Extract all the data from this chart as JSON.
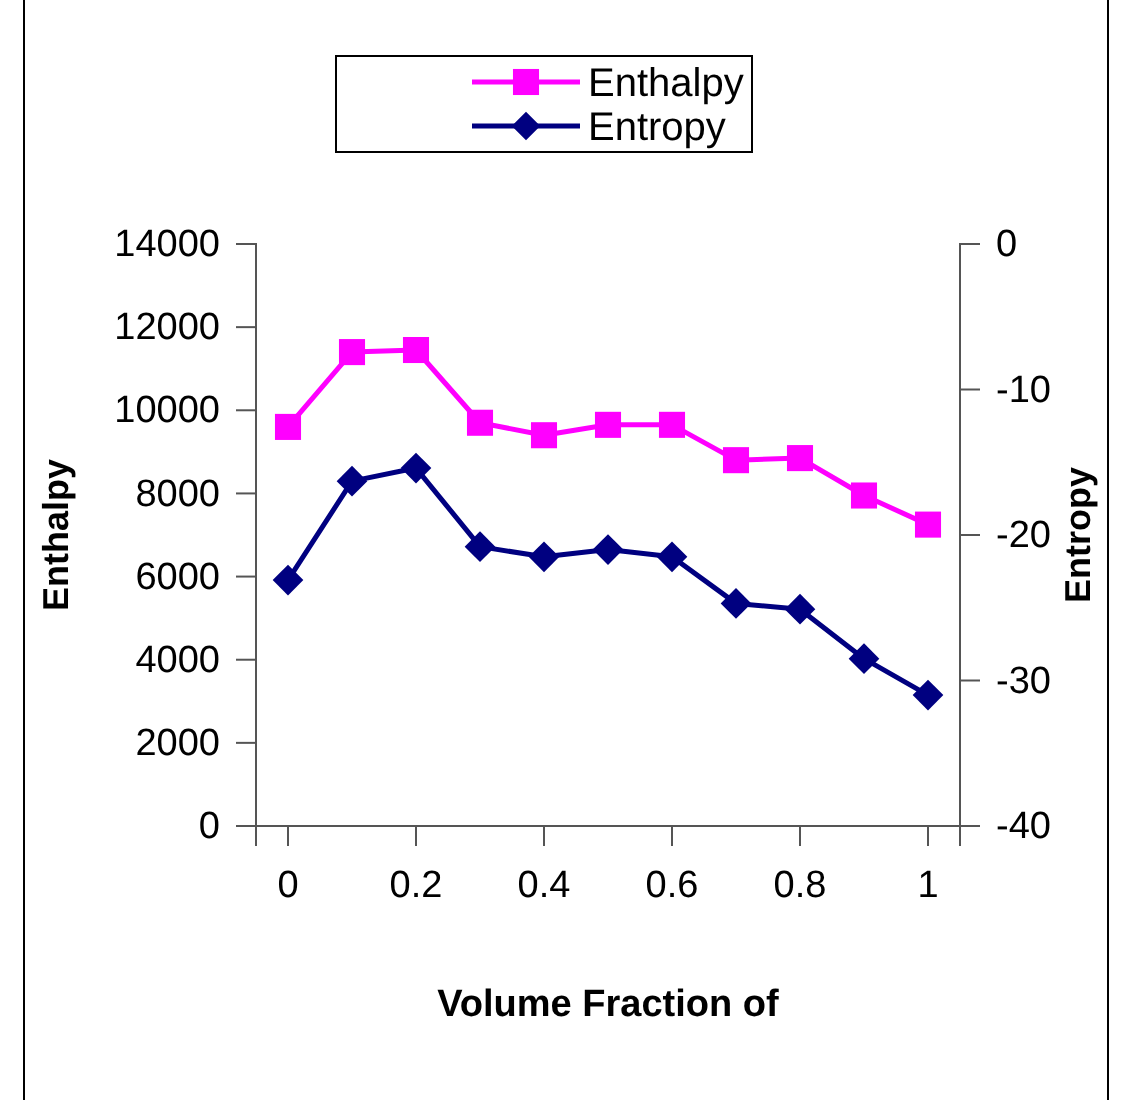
{
  "chart_data": {
    "type": "line",
    "xlabel": "Volume Fraction of",
    "ylabel": "Enthalpy",
    "y2label": "Entropy",
    "x": [
      0,
      0.1,
      0.2,
      0.3,
      0.4,
      0.5,
      0.6,
      0.7,
      0.8,
      0.9,
      1
    ],
    "xlim": [
      -0.05,
      1.05
    ],
    "xticks": [
      0,
      0.2,
      0.4,
      0.6,
      0.8,
      1
    ],
    "ylim": [
      0,
      14000
    ],
    "yticks": [
      0,
      2000,
      4000,
      6000,
      8000,
      10000,
      12000,
      14000
    ],
    "y2lim": [
      -40,
      0
    ],
    "y2ticks": [
      -40,
      -30,
      -20,
      -10,
      0
    ],
    "legend": "top",
    "grid": false,
    "series": [
      {
        "name": "Enthalpy",
        "color": "#ff00ff",
        "marker": "square",
        "values": [
          9600,
          11400,
          11450,
          9700,
          9400,
          9650,
          9650,
          8800,
          8850,
          7950,
          7250
        ]
      },
      {
        "name": "Entropy",
        "color": "#000080",
        "marker": "diamond",
        "axis": "y2",
        "values": [
          -23.1,
          -16.3,
          -15.4,
          -20.8,
          -21.5,
          -21.0,
          -21.5,
          -24.7,
          -25.1,
          -28.5,
          -31.0
        ]
      }
    ]
  }
}
